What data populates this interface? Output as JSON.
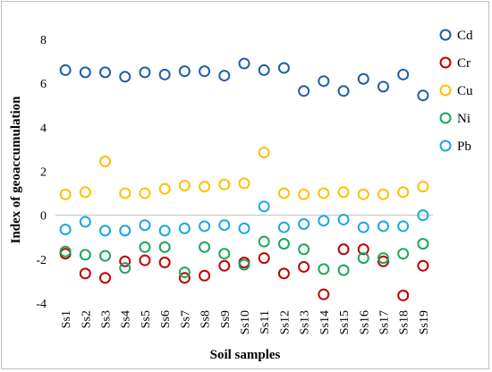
{
  "chart_data": {
    "type": "scatter",
    "categories": [
      "Ss1",
      "Ss2",
      "Ss3",
      "Ss4",
      "Ss5",
      "Ss6",
      "Ss7",
      "Ss8",
      "Ss9",
      "Ss10",
      "Ss11",
      "Ss12",
      "Ss13",
      "Ss14",
      "Ss15",
      "Ss16",
      "Ss17",
      "Ss18",
      "Ss19"
    ],
    "xlabel": "Soil samples",
    "ylabel": "Index of geoaccumulation",
    "ylim": [
      -4,
      8
    ],
    "yticks": [
      -4,
      -2,
      0,
      2,
      4,
      6,
      8
    ],
    "grid": false,
    "zero_line": true,
    "legend_position": "right",
    "series": [
      {
        "name": "Cd",
        "color": "#1f5fa8",
        "values": [
          6.6,
          6.5,
          6.5,
          6.3,
          6.5,
          6.4,
          6.55,
          6.55,
          6.35,
          6.9,
          6.6,
          6.7,
          5.65,
          6.1,
          5.65,
          6.2,
          5.85,
          6.4,
          5.45
        ]
      },
      {
        "name": "Cr",
        "color": "#c00000",
        "values": [
          -1.75,
          -2.65,
          -2.85,
          -2.1,
          -2.05,
          -2.15,
          -2.85,
          -2.75,
          -2.3,
          -2.15,
          -1.95,
          -2.65,
          -2.35,
          -3.6,
          -1.55,
          -1.55,
          -2.1,
          -3.65,
          -2.3
        ]
      },
      {
        "name": "Cu",
        "color": "#ffc000",
        "values": [
          0.95,
          1.05,
          2.45,
          1.0,
          1.0,
          1.2,
          1.35,
          1.3,
          1.4,
          1.45,
          2.85,
          1.0,
          0.95,
          1.0,
          1.05,
          0.95,
          0.95,
          1.05,
          1.3
        ]
      },
      {
        "name": "Ni",
        "color": "#1aa85a",
        "values": [
          -1.65,
          -1.8,
          -1.85,
          -2.4,
          -1.45,
          -1.45,
          -2.6,
          -1.45,
          -1.75,
          -2.25,
          -1.2,
          -1.3,
          -1.55,
          -2.45,
          -2.5,
          -1.95,
          -1.95,
          -1.75,
          -1.3
        ]
      },
      {
        "name": "Pb",
        "color": "#1aa7e0",
        "values": [
          -0.65,
          -0.3,
          -0.7,
          -0.7,
          -0.45,
          -0.7,
          -0.6,
          -0.5,
          -0.45,
          -0.6,
          0.4,
          -0.55,
          -0.4,
          -0.25,
          -0.2,
          -0.55,
          -0.5,
          -0.5,
          0.0
        ]
      }
    ]
  }
}
